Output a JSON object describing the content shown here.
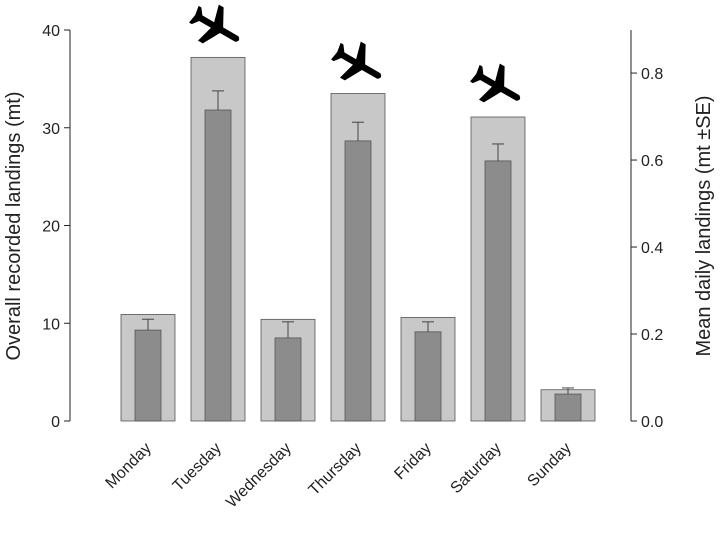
{
  "chart_data": {
    "type": "bar",
    "categories": [
      "Monday",
      "Tuesday",
      "Wednesday",
      "Thursday",
      "Friday",
      "Saturday",
      "Sunday"
    ],
    "y_label": "Overall recorded landings (mt)",
    "y2_label": "Mean daily landings (mt ±SE)",
    "series": [
      {
        "color": "#c8c8c8",
        "values": [
          10.9,
          37.2,
          10.4,
          33.5,
          10.6,
          31.1,
          3.2
        ]
      },
      {
        "color": "#8c8c8c",
        "axis": "y2",
        "values": [
          0.209,
          0.715,
          0.191,
          0.644,
          0.205,
          0.598,
          0.062
        ],
        "errors": [
          0.025,
          0.044,
          0.037,
          0.043,
          0.023,
          0.039,
          0.014
        ]
      }
    ],
    "ylim": [
      0,
      40
    ],
    "yticks": [
      0,
      10,
      20,
      30,
      40
    ],
    "y2lim": [
      0,
      0.899
    ],
    "y2ticks": [
      {
        "value": 0,
        "label": "0.0"
      },
      0.2,
      0.4,
      0.6,
      0.8
    ]
  }
}
